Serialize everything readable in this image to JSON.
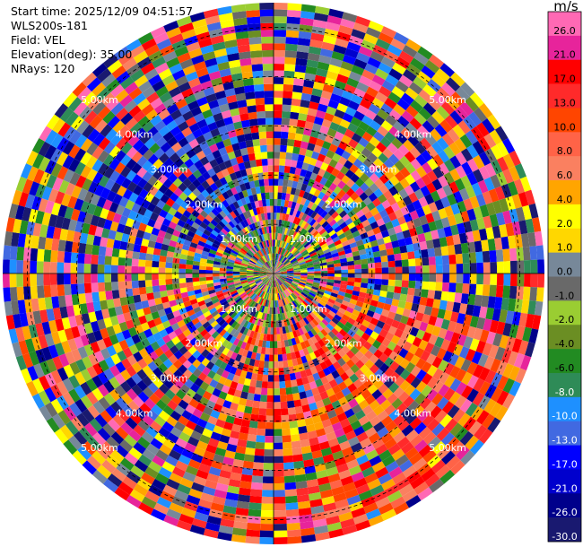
{
  "header": {
    "start_time": "Start time: 2025/12/09 04:51:57",
    "site": "WLS200s-181",
    "field": "Field: VEL",
    "elevation": "Elevation(deg): 35.00",
    "nrays": "NRays: 120"
  },
  "chart_data": {
    "type": "heatmap",
    "subtype": "ppi-polar",
    "field": "VEL",
    "n_rays": 120,
    "elevation_deg": 35.0,
    "range_rings_km": [
      1.0,
      2.0,
      3.0,
      4.0,
      5.0
    ],
    "ring_labels": [
      "1.00km",
      "2.00km",
      "3.00km",
      "4.00km",
      "5.00km"
    ],
    "max_range_km": 5.5,
    "colorbar": {
      "title": "m/s",
      "ticks": [
        "26.0",
        "21.0",
        "17.0",
        "13.0",
        "10.0",
        "8.0",
        "6.0",
        "4.0",
        "2.0",
        "1.0",
        "0.0",
        "-1.0",
        "-2.0",
        "-4.0",
        "-6.0",
        "-8.0",
        "-10.0",
        "-13.0",
        "-17.0",
        "-21.0",
        "-26.0",
        "-30.0"
      ],
      "levels": [
        30,
        26,
        21,
        17,
        13,
        10,
        8,
        6,
        4,
        2,
        1,
        0,
        -1,
        -2,
        -4,
        -6,
        -8,
        -10,
        -13,
        -17,
        -21,
        -26,
        -30
      ],
      "colors": [
        "#FF69B4",
        "#E7249B",
        "#FF0000",
        "#FF2A2A",
        "#FF4500",
        "#FF6347",
        "#FA8060",
        "#FFA500",
        "#FFFF00",
        "#FFD700",
        "#778899",
        "#696969",
        "#9ACD32",
        "#6B8E23",
        "#228B22",
        "#2E8B57",
        "#1E90FF",
        "#4169E1",
        "#0000FF",
        "#0000CD",
        "#00008B",
        "#191970"
      ]
    }
  }
}
